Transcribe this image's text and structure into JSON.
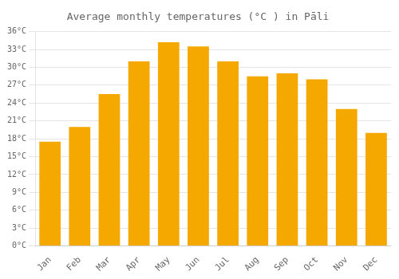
{
  "chart_data": {
    "type": "bar",
    "title": "Average monthly temperatures (°C ) in Pāli",
    "categories": [
      "Jan",
      "Feb",
      "Mar",
      "Apr",
      "May",
      "Jun",
      "Jul",
      "Aug",
      "Sep",
      "Oct",
      "Nov",
      "Dec"
    ],
    "values": [
      17.5,
      20.0,
      25.5,
      31.0,
      34.2,
      33.5,
      31.0,
      28.5,
      29.0,
      28.0,
      23.0,
      19.0
    ],
    "color": "#F5A800",
    "ylim": [
      0,
      36
    ],
    "yticks": [
      {
        "value": 0,
        "label": "0°C"
      },
      {
        "value": 3,
        "label": "3°C"
      },
      {
        "value": 6,
        "label": "6°C"
      },
      {
        "value": 9,
        "label": "9°C"
      },
      {
        "value": 12,
        "label": "12°C"
      },
      {
        "value": 15,
        "label": "15°C"
      },
      {
        "value": 18,
        "label": "18°C"
      },
      {
        "value": 21,
        "label": "21°C"
      },
      {
        "value": 24,
        "label": "24°C"
      },
      {
        "value": 27,
        "label": "27°C"
      },
      {
        "value": 30,
        "label": "30°C"
      },
      {
        "value": 33,
        "label": "33°C"
      },
      {
        "value": 36,
        "label": "36°C"
      }
    ],
    "grid": true
  }
}
